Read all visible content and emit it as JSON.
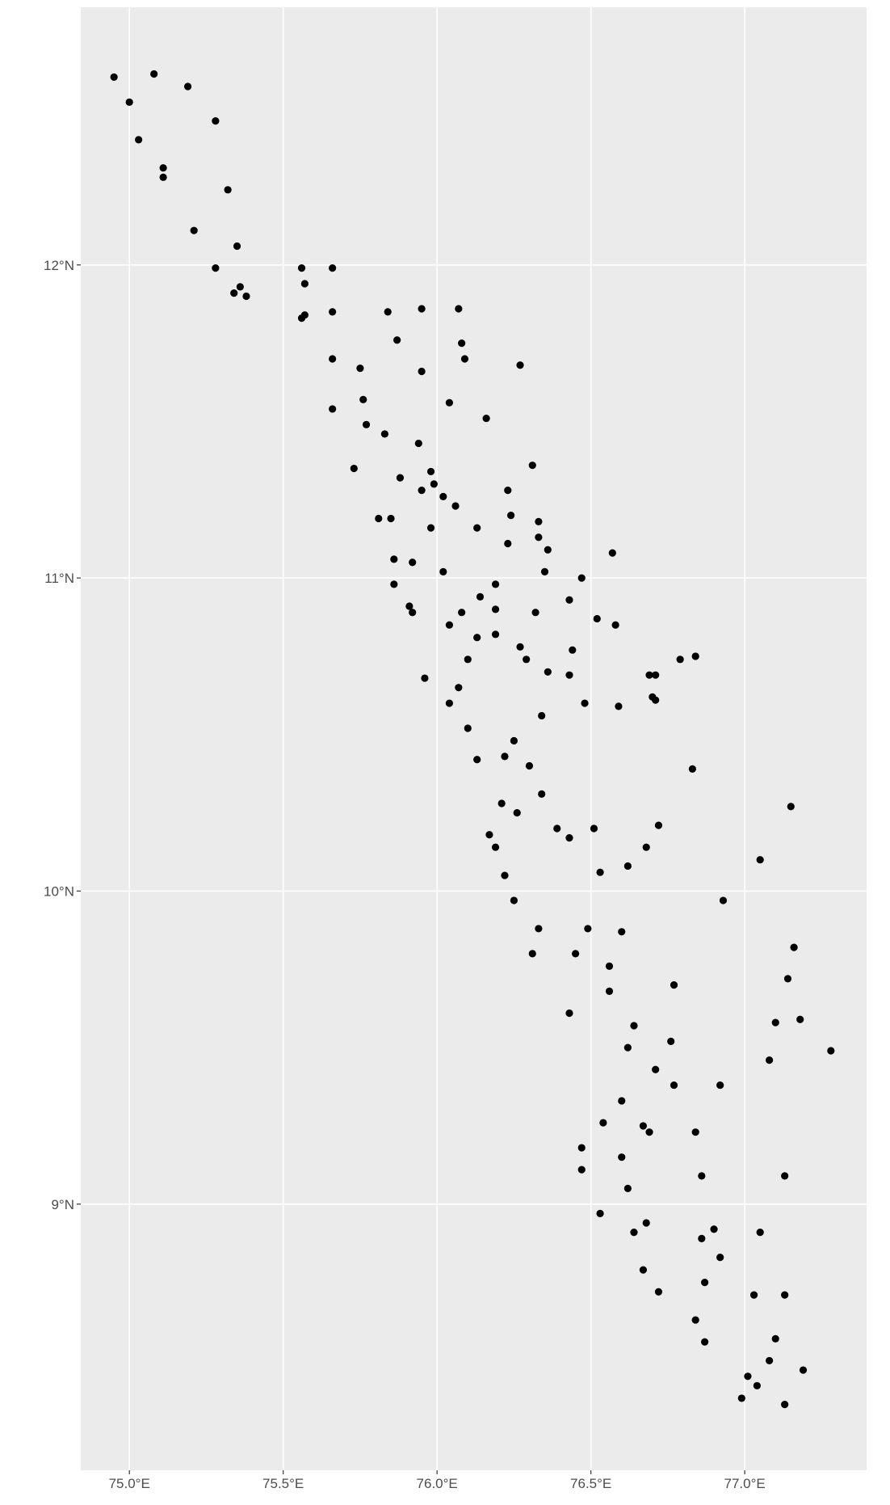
{
  "chart_data": {
    "type": "scatter",
    "x": [
      74.95,
      75.0,
      75.08,
      75.19,
      75.03,
      75.11,
      75.11,
      75.28,
      75.32,
      75.21,
      75.35,
      75.28,
      75.36,
      75.34,
      75.38,
      75.56,
      75.66,
      75.57,
      75.66,
      75.57,
      75.56,
      75.84,
      75.95,
      76.07,
      75.87,
      76.08,
      76.09,
      75.66,
      75.75,
      75.95,
      76.27,
      75.76,
      76.04,
      75.66,
      75.77,
      76.16,
      75.83,
      75.94,
      75.73,
      76.31,
      75.98,
      75.88,
      75.99,
      76.23,
      75.95,
      76.02,
      76.06,
      76.24,
      75.81,
      75.85,
      76.33,
      75.98,
      76.13,
      76.33,
      76.36,
      76.23,
      76.57,
      75.86,
      75.92,
      76.02,
      76.35,
      76.47,
      76.19,
      75.86,
      76.14,
      76.43,
      75.91,
      75.92,
      76.08,
      76.19,
      76.32,
      76.52,
      76.04,
      76.58,
      76.19,
      76.13,
      76.27,
      76.44,
      76.29,
      76.1,
      76.79,
      76.84,
      76.69,
      76.71,
      76.36,
      76.43,
      75.96,
      76.07,
      76.7,
      76.71,
      76.04,
      76.48,
      76.59,
      76.34,
      76.1,
      76.25,
      76.13,
      76.22,
      76.3,
      76.83,
      76.34,
      76.21,
      76.26,
      77.15,
      76.72,
      76.39,
      76.51,
      76.17,
      76.43,
      76.19,
      76.68,
      77.05,
      76.62,
      76.53,
      76.22,
      76.25,
      76.93,
      76.33,
      76.49,
      76.6,
      77.16,
      76.31,
      76.45,
      76.56,
      77.14,
      76.77,
      76.56,
      76.43,
      77.18,
      77.1,
      76.64,
      76.76,
      76.62,
      77.28,
      77.08,
      76.71,
      76.77,
      76.92,
      76.6,
      76.54,
      76.67,
      76.69,
      76.84,
      76.47,
      76.6,
      76.47,
      76.86,
      77.13,
      76.62,
      76.53,
      76.68,
      76.9,
      76.64,
      77.05,
      76.86,
      76.92,
      76.67,
      76.87,
      76.72,
      77.03,
      77.13,
      76.84,
      76.87,
      77.1,
      77.08,
      77.19,
      77.01,
      77.04,
      76.99,
      77.13
    ],
    "values": [
      12.6,
      12.52,
      12.61,
      12.57,
      12.4,
      12.31,
      12.28,
      12.46,
      12.24,
      12.11,
      12.06,
      11.99,
      11.93,
      11.91,
      11.9,
      11.99,
      11.99,
      11.94,
      11.85,
      11.84,
      11.83,
      11.85,
      11.86,
      11.86,
      11.76,
      11.75,
      11.7,
      11.7,
      11.67,
      11.66,
      11.68,
      11.57,
      11.56,
      11.54,
      11.49,
      11.51,
      11.46,
      11.43,
      11.35,
      11.36,
      11.34,
      11.32,
      11.3,
      11.28,
      11.28,
      11.26,
      11.23,
      11.2,
      11.19,
      11.19,
      11.18,
      11.16,
      11.16,
      11.13,
      11.09,
      11.11,
      11.08,
      11.06,
      11.05,
      11.02,
      11.02,
      11.0,
      10.98,
      10.98,
      10.94,
      10.93,
      10.91,
      10.89,
      10.89,
      10.9,
      10.89,
      10.87,
      10.85,
      10.85,
      10.82,
      10.81,
      10.78,
      10.77,
      10.74,
      10.74,
      10.74,
      10.75,
      10.69,
      10.69,
      10.7,
      10.69,
      10.68,
      10.65,
      10.62,
      10.61,
      10.6,
      10.6,
      10.59,
      10.56,
      10.52,
      10.48,
      10.42,
      10.43,
      10.4,
      10.39,
      10.31,
      10.28,
      10.25,
      10.27,
      10.21,
      10.2,
      10.2,
      10.18,
      10.17,
      10.14,
      10.14,
      10.1,
      10.08,
      10.06,
      10.05,
      9.97,
      9.97,
      9.88,
      9.88,
      9.87,
      9.82,
      9.8,
      9.8,
      9.76,
      9.72,
      9.7,
      9.68,
      9.61,
      9.59,
      9.58,
      9.57,
      9.52,
      9.5,
      9.49,
      9.46,
      9.43,
      9.38,
      9.38,
      9.33,
      9.26,
      9.25,
      9.23,
      9.23,
      9.18,
      9.15,
      9.11,
      9.09,
      9.09,
      9.05,
      8.97,
      8.94,
      8.92,
      8.91,
      8.91,
      8.89,
      8.83,
      8.79,
      8.75,
      8.72,
      8.71,
      8.71,
      8.63,
      8.56,
      8.57,
      8.5,
      8.47,
      8.45,
      8.42,
      8.38,
      8.36
    ],
    "color": "#000000",
    "xlim": [
      74.842,
      77.396
    ],
    "ylim": [
      8.15,
      12.823
    ],
    "xticks": [
      {
        "value": 75,
        "label": "75.0°E"
      },
      {
        "value": 75.5,
        "label": "75.5°E"
      },
      {
        "value": 76,
        "label": "76.0°E"
      },
      {
        "value": 76.5,
        "label": "76.5°E"
      },
      {
        "value": 77,
        "label": "77.0°E"
      }
    ],
    "yticks": [
      {
        "value": 9,
        "label": "9°N"
      },
      {
        "value": 10,
        "label": "10°N"
      },
      {
        "value": 11,
        "label": "11°N"
      },
      {
        "value": 12,
        "label": "12°N"
      }
    ],
    "grid": true
  }
}
